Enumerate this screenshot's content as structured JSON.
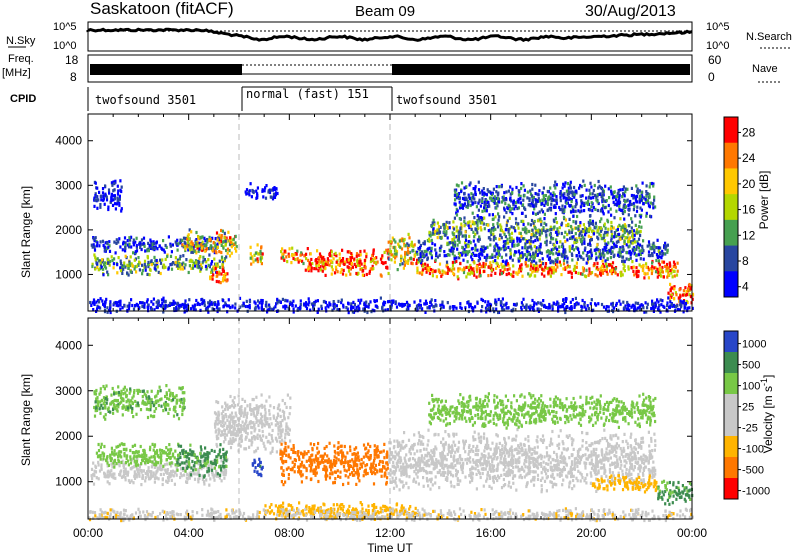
{
  "header": {
    "station": "Saskatoon (fitACF)",
    "beam": "Beam 09",
    "date": "30/Aug/2013"
  },
  "aux_panels": {
    "nsky_label": "N.Sky",
    "nsky_ticks_left": [
      "10^5",
      "10^0"
    ],
    "nsky_ticks_right": [
      "10^5",
      "10^0"
    ],
    "nsearch_label": "N.Search",
    "freq_label": "Freq.",
    "freq_unit": "[MHz]",
    "freq_ticks": [
      "18",
      "8"
    ],
    "nave_label": "Nave",
    "nave_ticks": [
      "60",
      "0"
    ],
    "cpid_label": "CPID",
    "cpid_segments": [
      {
        "label": "twofsound 3501",
        "start_h": 0,
        "end_h": 6
      },
      {
        "label": "normal (fast) 151",
        "start_h": 6,
        "end_h": 12
      },
      {
        "label": "twofsound 3501",
        "start_h": 12,
        "end_h": 24
      }
    ]
  },
  "chart_data": [
    {
      "type": "heatmap",
      "name": "power",
      "ylabel": "Slant Range [km]",
      "ylim": [
        180,
        4600
      ],
      "xlim": [
        0,
        24
      ],
      "yticks": [
        1000,
        2000,
        3000,
        4000
      ],
      "colorbar_label": "Power [dB]",
      "colorbar_ticks": [
        "28",
        "24",
        "20",
        "16",
        "12",
        "8",
        "4"
      ],
      "colorbar_colors": [
        "#ff0000",
        "#ff7800",
        "#ffc800",
        "#b4d700",
        "#46a050",
        "#2846a0",
        "#0000ff"
      ],
      "scatter_bands": [
        {
          "start_h": 0.1,
          "end_h": 5.5,
          "center_km": 1250,
          "width_km": 250,
          "value": 14
        },
        {
          "start_h": 0.1,
          "end_h": 5.2,
          "center_km": 1700,
          "width_km": 200,
          "value": 8
        },
        {
          "start_h": 0.2,
          "end_h": 1.3,
          "center_km": 2800,
          "width_km": 400,
          "value": 6
        },
        {
          "start_h": 3.7,
          "end_h": 5.9,
          "center_km": 1700,
          "width_km": 350,
          "value": 20
        },
        {
          "start_h": 4.8,
          "end_h": 5.5,
          "center_km": 1000,
          "width_km": 250,
          "value": 28
        },
        {
          "start_h": 6.2,
          "end_h": 7.5,
          "center_km": 2900,
          "width_km": 200,
          "value": 6
        },
        {
          "start_h": 6.4,
          "end_h": 6.9,
          "center_km": 1450,
          "width_km": 300,
          "value": 22
        },
        {
          "start_h": 7.6,
          "end_h": 8.6,
          "center_km": 1450,
          "width_km": 200,
          "value": 24
        },
        {
          "start_h": 8.6,
          "end_h": 11.9,
          "center_km": 1300,
          "width_km": 350,
          "value": 28
        },
        {
          "start_h": 11.9,
          "end_h": 13.0,
          "center_km": 1550,
          "width_km": 450,
          "value": 20
        },
        {
          "start_h": 13.0,
          "end_h": 23.4,
          "center_km": 1150,
          "width_km": 220,
          "value": 26
        },
        {
          "start_h": 13.0,
          "end_h": 23.0,
          "center_km": 1550,
          "width_km": 300,
          "value": 10
        },
        {
          "start_h": 13.5,
          "end_h": 22.0,
          "center_km": 2000,
          "width_km": 350,
          "value": 14
        },
        {
          "start_h": 14.5,
          "end_h": 22.5,
          "center_km": 2700,
          "width_km": 450,
          "value": 9
        },
        {
          "start_h": 23.0,
          "end_h": 24.0,
          "center_km": 600,
          "width_km": 300,
          "value": 28
        },
        {
          "start_h": 0.0,
          "end_h": 24.0,
          "center_km": 330,
          "width_km": 180,
          "value": 6
        }
      ]
    },
    {
      "type": "heatmap",
      "name": "velocity",
      "ylabel": "Slant Range [km]",
      "ylim": [
        180,
        4600
      ],
      "xlim": [
        0,
        24
      ],
      "yticks": [
        1000,
        2000,
        3000,
        4000
      ],
      "colorbar_label": "Velocity [m s^-1]",
      "colorbar_ticks": [
        "1000",
        "500",
        "100",
        "25",
        "-25",
        "-100",
        "-500",
        "-1000"
      ],
      "colorbar_colors": [
        "#2846c8",
        "#3c8c50",
        "#78c846",
        "#c8c8c8",
        "#c8c8c8",
        "#ffb400",
        "#ff7800",
        "#ff0000"
      ],
      "scatter_bands": [
        {
          "start_h": 0.1,
          "end_h": 5.5,
          "center_km": 1250,
          "width_km": 300,
          "value": 20
        },
        {
          "start_h": 0.3,
          "end_h": 3.5,
          "center_km": 1600,
          "width_km": 300,
          "value": 150
        },
        {
          "start_h": 0.2,
          "end_h": 3.8,
          "center_km": 2800,
          "width_km": 400,
          "value": 300
        },
        {
          "start_h": 3.5,
          "end_h": 5.5,
          "center_km": 1500,
          "width_km": 400,
          "value": 400
        },
        {
          "start_h": 6.5,
          "end_h": 6.9,
          "center_km": 1350,
          "width_km": 300,
          "value": 1000
        },
        {
          "start_h": 5.0,
          "end_h": 8.0,
          "center_km": 2300,
          "width_km": 700,
          "value": 10
        },
        {
          "start_h": 7.6,
          "end_h": 11.9,
          "center_km": 1450,
          "width_km": 500,
          "value": -500
        },
        {
          "start_h": 11.9,
          "end_h": 22.5,
          "center_km": 1500,
          "width_km": 700,
          "value": 0
        },
        {
          "start_h": 13.5,
          "end_h": 22.5,
          "center_km": 2600,
          "width_km": 400,
          "value": 120
        },
        {
          "start_h": 20.0,
          "end_h": 22.6,
          "center_km": 1000,
          "width_km": 200,
          "value": -150
        },
        {
          "start_h": 22.6,
          "end_h": 24.0,
          "center_km": 800,
          "width_km": 300,
          "value": 400
        },
        {
          "start_h": 7.0,
          "end_h": 13.0,
          "center_km": 400,
          "width_km": 200,
          "value": -150
        },
        {
          "start_h": 0.0,
          "end_h": 24.0,
          "center_km": 300,
          "width_km": 150,
          "value": -50
        }
      ]
    }
  ],
  "time_axis": {
    "title": "Time UT",
    "ticks": [
      "00:00",
      "04:00",
      "08:00",
      "12:00",
      "16:00",
      "20:00",
      "00:00"
    ]
  }
}
